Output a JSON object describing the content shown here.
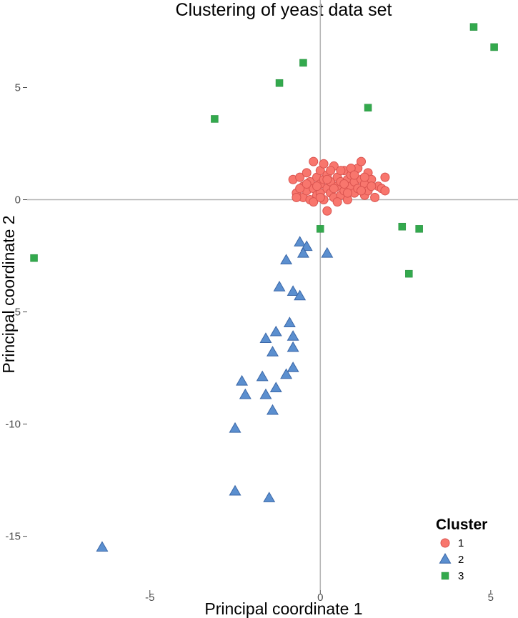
{
  "chart_data": {
    "type": "scatter",
    "title": "Clustering of yeast data set",
    "xlabel": "Principal coordinate 1",
    "ylabel": "Principal coordinate 2",
    "xlim": [
      -8.6,
      5.8
    ],
    "ylim": [
      -17.4,
      8.9
    ],
    "x_ticks": [
      -5,
      0,
      5
    ],
    "y_ticks": [
      5,
      0,
      -5,
      -10,
      -15
    ],
    "grid": false,
    "zero_lines": true,
    "legend": {
      "title": "Cluster",
      "position": "bottom-right",
      "entries": [
        "1",
        "2",
        "3"
      ]
    },
    "series": [
      {
        "name": "1",
        "shape": "circle",
        "fill": "#f8766d",
        "stroke": "#d9534f",
        "points": [
          [
            -0.8,
            0.9
          ],
          [
            -0.7,
            0.3
          ],
          [
            -0.6,
            1.0
          ],
          [
            -0.5,
            0.1
          ],
          [
            -0.5,
            0.6
          ],
          [
            -0.4,
            1.2
          ],
          [
            -0.4,
            0.4
          ],
          [
            -0.3,
            0.8
          ],
          [
            -0.3,
            0.0
          ],
          [
            -0.2,
            1.7
          ],
          [
            -0.2,
            0.5
          ],
          [
            -0.1,
            0.2
          ],
          [
            -0.1,
            1.0
          ],
          [
            0.0,
            0.7
          ],
          [
            0.0,
            1.3
          ],
          [
            0.0,
            0.3
          ],
          [
            0.1,
            0.9
          ],
          [
            0.1,
            0.0
          ],
          [
            0.2,
            0.5
          ],
          [
            0.2,
            1.1
          ],
          [
            0.3,
            0.3
          ],
          [
            0.3,
            0.8
          ],
          [
            0.4,
            1.5
          ],
          [
            0.4,
            0.1
          ],
          [
            0.5,
            0.6
          ],
          [
            0.5,
            1.0
          ],
          [
            0.6,
            0.2
          ],
          [
            0.6,
            0.8
          ],
          [
            0.7,
            1.3
          ],
          [
            0.7,
            0.4
          ],
          [
            0.8,
            0.9
          ],
          [
            0.8,
            0.0
          ],
          [
            0.9,
            0.6
          ],
          [
            0.9,
            1.1
          ],
          [
            1.0,
            0.3
          ],
          [
            1.0,
            0.8
          ],
          [
            1.1,
            1.4
          ],
          [
            1.1,
            0.5
          ],
          [
            1.2,
            1.7
          ],
          [
            1.2,
            0.9
          ],
          [
            1.3,
            0.2
          ],
          [
            1.3,
            0.7
          ],
          [
            1.4,
            1.2
          ],
          [
            1.4,
            0.4
          ],
          [
            1.5,
            0.9
          ],
          [
            1.6,
            0.1
          ],
          [
            1.7,
            0.6
          ],
          [
            1.8,
            0.5
          ],
          [
            1.9,
            1.0
          ],
          [
            1.9,
            0.4
          ],
          [
            -0.6,
            0.5
          ],
          [
            -0.2,
            -0.1
          ],
          [
            0.2,
            -0.5
          ],
          [
            0.5,
            -0.1
          ],
          [
            0.1,
            1.6
          ],
          [
            0.6,
            1.3
          ],
          [
            -0.4,
            0.7
          ],
          [
            0.3,
            1.3
          ],
          [
            0.9,
            1.4
          ],
          [
            1.5,
            0.6
          ],
          [
            -0.7,
            0.1
          ],
          [
            0.0,
            0.1
          ],
          [
            0.4,
            0.5
          ],
          [
            0.8,
            0.3
          ],
          [
            1.0,
            1.1
          ],
          [
            1.2,
            0.4
          ],
          [
            -0.1,
            0.6
          ],
          [
            0.2,
            0.9
          ],
          [
            0.7,
            0.7
          ],
          [
            1.3,
            1.0
          ]
        ]
      },
      {
        "name": "2",
        "shape": "triangle",
        "fill": "#5b8fcf",
        "stroke": "#3a67a8",
        "points": [
          [
            -0.6,
            -1.9
          ],
          [
            -0.4,
            -2.1
          ],
          [
            -0.5,
            -2.4
          ],
          [
            0.2,
            -2.4
          ],
          [
            -1.0,
            -2.7
          ],
          [
            -1.2,
            -3.9
          ],
          [
            -0.8,
            -4.1
          ],
          [
            -0.6,
            -4.3
          ],
          [
            -0.9,
            -5.5
          ],
          [
            -1.3,
            -5.9
          ],
          [
            -1.6,
            -6.2
          ],
          [
            -0.8,
            -6.1
          ],
          [
            -0.8,
            -6.6
          ],
          [
            -1.4,
            -6.8
          ],
          [
            -0.8,
            -7.5
          ],
          [
            -1.0,
            -7.8
          ],
          [
            -1.7,
            -7.9
          ],
          [
            -2.3,
            -8.1
          ],
          [
            -1.3,
            -8.4
          ],
          [
            -2.2,
            -8.7
          ],
          [
            -1.6,
            -8.7
          ],
          [
            -1.4,
            -9.4
          ],
          [
            -2.5,
            -10.2
          ],
          [
            -2.5,
            -13.0
          ],
          [
            -1.5,
            -13.3
          ],
          [
            -6.4,
            -15.5
          ]
        ]
      },
      {
        "name": "3",
        "shape": "square",
        "fill": "#33a94d",
        "stroke": "#2a8f41",
        "points": [
          [
            4.5,
            7.7
          ],
          [
            5.1,
            6.8
          ],
          [
            -0.5,
            6.1
          ],
          [
            -1.2,
            5.2
          ],
          [
            1.4,
            4.1
          ],
          [
            -3.1,
            3.6
          ],
          [
            0.0,
            -1.3
          ],
          [
            2.4,
            -1.2
          ],
          [
            2.9,
            -1.3
          ],
          [
            2.6,
            -3.3
          ],
          [
            -8.4,
            -2.6
          ]
        ]
      }
    ]
  }
}
